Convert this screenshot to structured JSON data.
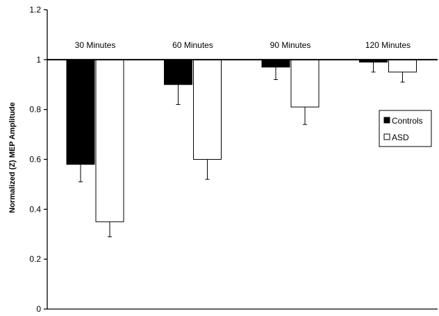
{
  "chart_data": {
    "type": "bar",
    "title": "",
    "xlabel": "",
    "ylabel": "Normalized (Z) MEP Amplitude",
    "ylim": [
      0,
      1.2
    ],
    "yticks": [
      0,
      0.2,
      0.4,
      0.6,
      0.8,
      1,
      1.2
    ],
    "ytick_labels": [
      "0",
      "0.2",
      "0.4",
      "0.6",
      "0.8",
      "1",
      "1.2"
    ],
    "baseline": 1,
    "grid": false,
    "legend_position": "right",
    "categories": [
      "30 Minutes",
      "60 Minutes",
      "90 Minutes",
      "120 Minutes"
    ],
    "series": [
      {
        "name": "Controls",
        "color": "#000000",
        "values": [
          0.58,
          0.9,
          0.97,
          0.99
        ],
        "error_lower": [
          0.51,
          0.82,
          0.92,
          0.95
        ]
      },
      {
        "name": "ASD",
        "color": "#ffffff",
        "values": [
          0.35,
          0.6,
          0.81,
          0.95
        ],
        "error_lower": [
          0.29,
          0.52,
          0.74,
          0.91
        ]
      }
    ]
  }
}
